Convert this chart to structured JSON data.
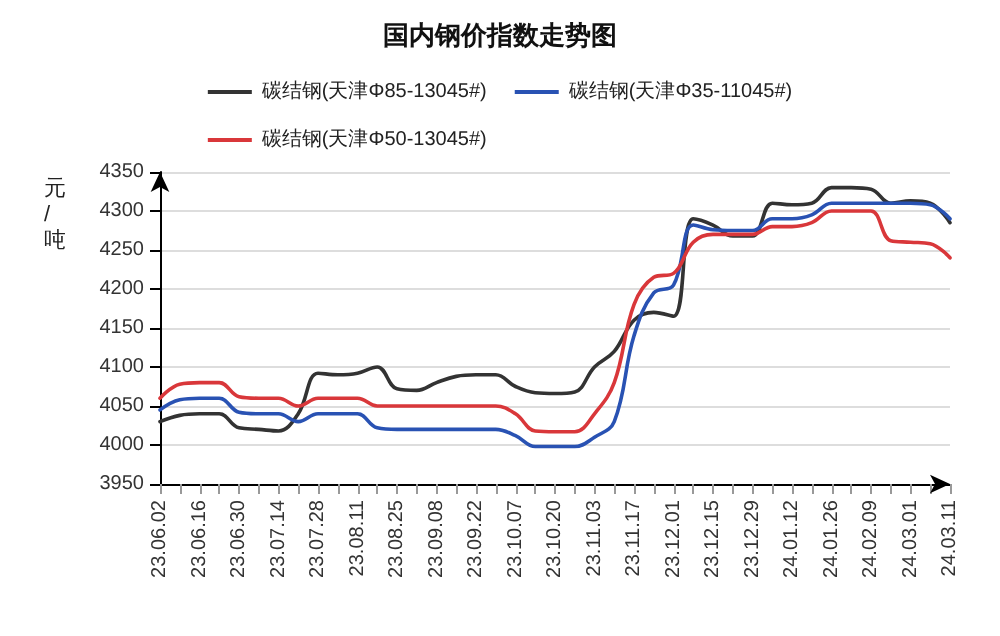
{
  "chart_data": {
    "type": "line",
    "title": "国内钢价指数走势图",
    "ylabel": "元/吨",
    "categories": [
      "23.06.02",
      null,
      "23.06.16",
      null,
      "23.06.30",
      null,
      "23.07.14",
      null,
      "23.07.28",
      null,
      "23.08.11",
      null,
      "23.08.25",
      null,
      "23.09.08",
      null,
      "23.09.22",
      null,
      "23.10.07",
      null,
      "23.10.20",
      null,
      "23.11.03",
      null,
      "23.11.17",
      null,
      "23.12.01",
      null,
      "23.12.15",
      null,
      "23.12.29",
      null,
      "24.01.12",
      null,
      "24.01.26",
      null,
      "24.02.09",
      null,
      "24.03.01",
      null,
      "24.03.11"
    ],
    "series": [
      {
        "name": "碳结钢(天津Φ85-13045#)",
        "color": "#333333",
        "values": [
          4030,
          4038,
          4040,
          4040,
          4022,
          4020,
          4018,
          4040,
          4092,
          4090,
          4092,
          4100,
          4072,
          4070,
          4080,
          4088,
          4090,
          4090,
          4075,
          4067,
          4066,
          4068,
          4100,
          4120,
          4160,
          4170,
          4165,
          4290,
          4282,
          4268,
          4268,
          4310,
          4308,
          4310,
          4330,
          4330,
          4328,
          4310,
          4313,
          4310,
          4285
        ]
      },
      {
        "name": "碳结钢(天津Φ35-11045#)",
        "color": "#2952b3",
        "values": [
          4045,
          4058,
          4060,
          4060,
          4042,
          4040,
          4040,
          4030,
          4040,
          4040,
          4040,
          4022,
          4020,
          4020,
          4020,
          4020,
          4020,
          4020,
          4012,
          3998,
          3998,
          3998,
          4010,
          4030,
          4140,
          4195,
          4205,
          4282,
          4276,
          4275,
          4275,
          4290,
          4290,
          4295,
          4310,
          4310,
          4310,
          4310,
          4310,
          4308,
          4290
        ]
      },
      {
        "name": "碳结钢(天津Φ50-13045#)",
        "color": "#d9373a",
        "values": [
          4060,
          4078,
          4080,
          4080,
          4062,
          4060,
          4060,
          4050,
          4060,
          4060,
          4060,
          4050,
          4050,
          4050,
          4050,
          4050,
          4050,
          4050,
          4040,
          4018,
          4017,
          4017,
          4040,
          4080,
          4180,
          4215,
          4220,
          4260,
          4270,
          4270,
          4270,
          4280,
          4280,
          4285,
          4300,
          4300,
          4300,
          4262,
          4260,
          4258,
          4240
        ]
      }
    ],
    "ylim": [
      3950,
      4350
    ],
    "yticks": [
      3950,
      4000,
      4050,
      4100,
      4150,
      4200,
      4250,
      4300,
      4350
    ],
    "grid": "y",
    "legend": "top",
    "marker": "none",
    "line_style": "solid"
  }
}
